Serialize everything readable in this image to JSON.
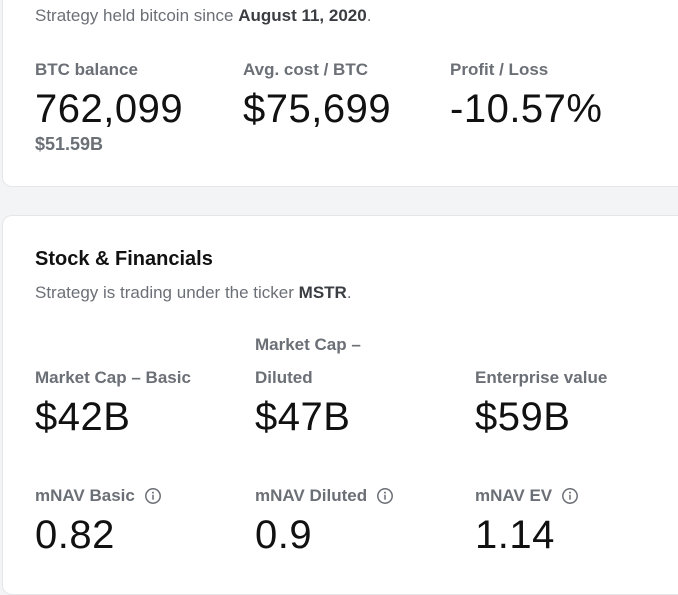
{
  "btc_holdings": {
    "held_since_prefix": "Strategy held bitcoin since",
    "held_since_date": "August 11, 2020",
    "held_since_suffix": ".",
    "stats": [
      {
        "label": "BTC balance",
        "value": "762,099",
        "sub": "$51.59B"
      },
      {
        "label": "Avg. cost / BTC",
        "value": "$75,699"
      },
      {
        "label": "Profit / Loss",
        "value": "-10.57%"
      }
    ]
  },
  "stock_financials": {
    "title": "Stock & Financials",
    "ticker_prefix": "Strategy is trading under the ticker",
    "ticker": "MSTR",
    "ticker_suffix": ".",
    "market_cap_basic": {
      "label": "Market Cap – Basic",
      "value": "$42B"
    },
    "market_cap_diluted": {
      "label_line1": "Market Cap –",
      "label_line2": "Diluted",
      "value": "$47B"
    },
    "enterprise_value": {
      "label": "Enterprise value",
      "value": "$59B"
    },
    "mnav_basic": {
      "label": "mNAV Basic",
      "value": "0.82",
      "icon": "info-icon"
    },
    "mnav_diluted": {
      "label": "mNAV Diluted",
      "value": "0.9",
      "icon": "info-icon"
    },
    "mnav_ev": {
      "label": "mNAV EV",
      "value": "1.14",
      "icon": "info-icon"
    }
  },
  "colors": {
    "text_primary": "#111111",
    "text_muted": "#6b6f76",
    "card_border": "#e4e6ea",
    "page_bg": "#f3f4f6"
  }
}
